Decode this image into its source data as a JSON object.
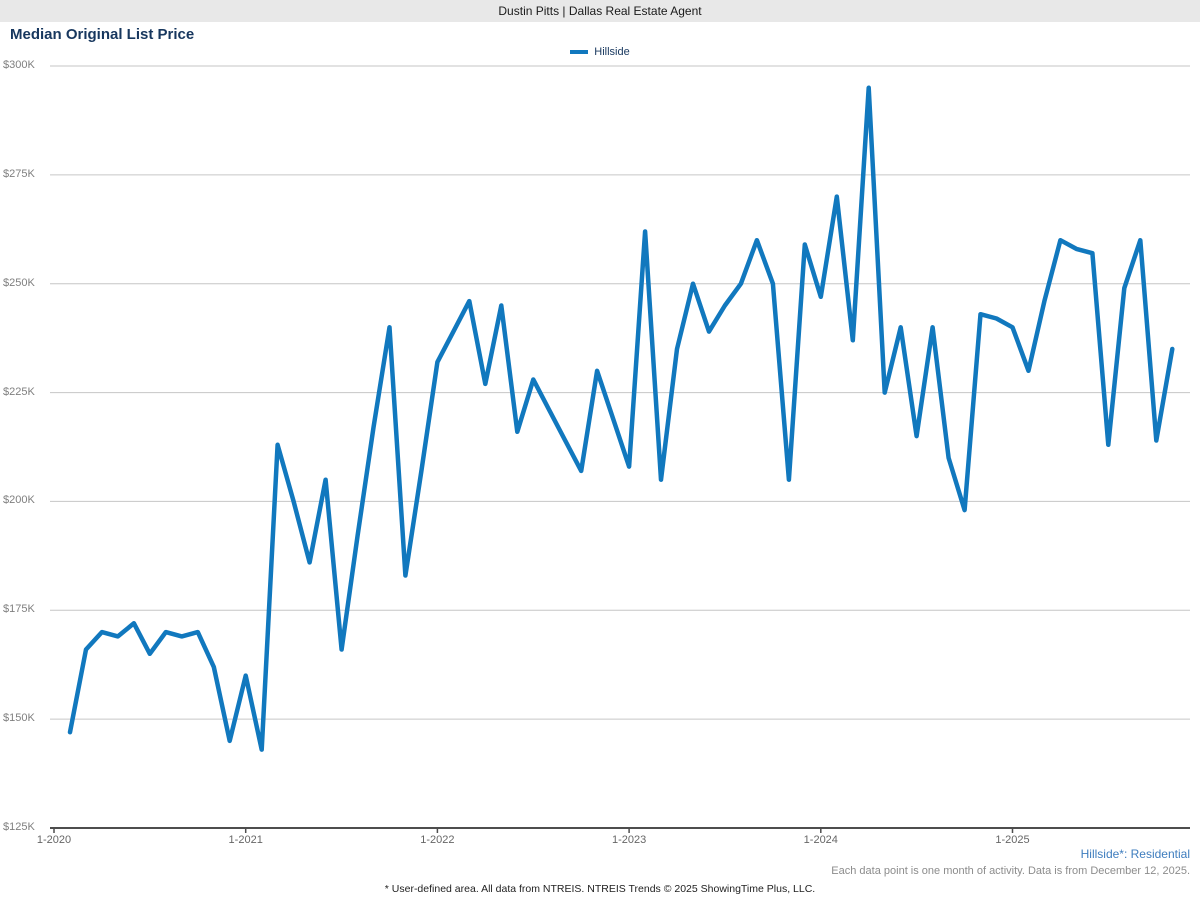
{
  "header": {
    "title": "Dustin Pitts | Dallas Real Estate Agent"
  },
  "chart": {
    "title": "Median Original List Price",
    "legend": [
      {
        "label": "Hillside",
        "color": "#1178BE"
      }
    ]
  },
  "annotations": {
    "series_note": "Hillside*: Residential",
    "data_note": "Each data point is one month of activity. Data is from December 12, 2025.",
    "footer": "* User-defined area. All data from NTREIS. NTREIS Trends © 2025 ShowingTime Plus, LLC."
  },
  "colors": {
    "line": "#1178BE",
    "title": "#17375E",
    "gridline": "#c6c6c6",
    "axis": "#4d4d4d",
    "tick_label": "#666666",
    "y_label": "#7f7f7f",
    "link": "#3E7DBE",
    "banner_bg": "#E8E8E8"
  },
  "chart_data": {
    "type": "line",
    "title": "Median Original List Price",
    "unit": "USD thousands (K)",
    "ylim": [
      125,
      300
    ],
    "y_tick_values": [
      300,
      275,
      250,
      225,
      200,
      175,
      150,
      125
    ],
    "y_ticks": [
      "$300K",
      "$275K",
      "$250K",
      "$225K",
      "$200K",
      "$175K",
      "$150K",
      "$125K"
    ],
    "x_ticks": [
      "1-2020",
      "1-2021",
      "1-2022",
      "1-2023",
      "1-2024",
      "1-2025"
    ],
    "grid": "horizontal",
    "legend_position": "top-center",
    "series": [
      {
        "name": "Hillside",
        "color": "#1178BE",
        "x": [
          "2-2020",
          "3-2020",
          "4-2020",
          "5-2020",
          "6-2020",
          "7-2020",
          "8-2020",
          "9-2020",
          "10-2020",
          "11-2020",
          "12-2020",
          "1-2021",
          "2-2021",
          "3-2021",
          "4-2021",
          "5-2021",
          "6-2021",
          "7-2021",
          "8-2021",
          "9-2021",
          "10-2021",
          "11-2021",
          "12-2021",
          "1-2022",
          "2-2022",
          "3-2022",
          "4-2022",
          "5-2022",
          "6-2022",
          "7-2022",
          "8-2022",
          "9-2022",
          "10-2022",
          "11-2022",
          "12-2022",
          "1-2023",
          "2-2023",
          "3-2023",
          "4-2023",
          "5-2023",
          "6-2023",
          "7-2023",
          "8-2023",
          "9-2023",
          "10-2023",
          "11-2023",
          "12-2023",
          "1-2024",
          "2-2024",
          "3-2024",
          "4-2024",
          "5-2024",
          "6-2024",
          "7-2024",
          "8-2024",
          "9-2024",
          "10-2024",
          "11-2024",
          "12-2024",
          "1-2025",
          "2-2025",
          "3-2025",
          "4-2025",
          "5-2025",
          "6-2025",
          "7-2025",
          "8-2025",
          "9-2025",
          "10-2025",
          "11-2025"
        ],
        "values": [
          147,
          166,
          170,
          169,
          172,
          165,
          170,
          169,
          170,
          162,
          145,
          160,
          143,
          213,
          200,
          186,
          205,
          166,
          192,
          217,
          240,
          183,
          207,
          232,
          239,
          246,
          227,
          245,
          216,
          228,
          221,
          214,
          207,
          230,
          219,
          208,
          262,
          205,
          235,
          250,
          239,
          245,
          250,
          260,
          250,
          205,
          259,
          247,
          270,
          237,
          295,
          225,
          240,
          215,
          240,
          210,
          198,
          243,
          242,
          240,
          230,
          246,
          260,
          258,
          257,
          213,
          249,
          260,
          214,
          235
        ]
      }
    ]
  }
}
